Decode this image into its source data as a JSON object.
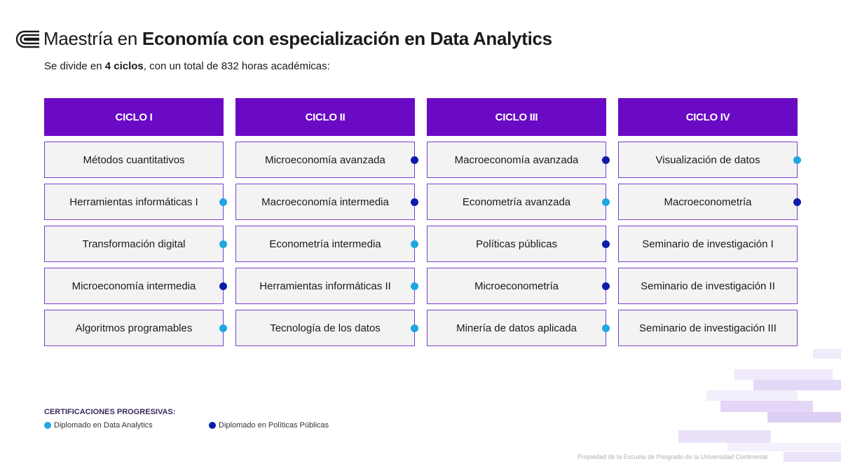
{
  "header": {
    "title_prefix": "Maestría en ",
    "title_bold": "Economía con especialización en Data Analytics",
    "subtitle_pre": "Se divide en ",
    "subtitle_bold": "4 ciclos",
    "subtitle_post": ", con un total de 832 horas académicas:"
  },
  "colors": {
    "header_purple": "#6b0ac4",
    "data_analytics_dot": "#1ea7e1",
    "politicas_publicas_dot": "#0b1cab"
  },
  "cycles": [
    {
      "label": "CICLO I",
      "courses": [
        {
          "name": "Métodos cuantitativos",
          "cert": "none"
        },
        {
          "name": "Herramientas informáticas I",
          "cert": "data-analytics"
        },
        {
          "name": "Transformación digital",
          "cert": "data-analytics"
        },
        {
          "name": "Microeconomía intermedia",
          "cert": "politicas-publicas"
        },
        {
          "name": "Algoritmos programables",
          "cert": "data-analytics"
        }
      ]
    },
    {
      "label": "CICLO II",
      "courses": [
        {
          "name": "Microeconomía avanzada",
          "cert": "politicas-publicas"
        },
        {
          "name": "Macroeconomía intermedia",
          "cert": "politicas-publicas"
        },
        {
          "name": "Econometría intermedia",
          "cert": "data-analytics"
        },
        {
          "name": "Herramientas informáticas II",
          "cert": "data-analytics"
        },
        {
          "name": "Tecnología de los datos",
          "cert": "data-analytics"
        }
      ]
    },
    {
      "label": "CICLO III",
      "courses": [
        {
          "name": "Macroeconomía avanzada",
          "cert": "politicas-publicas"
        },
        {
          "name": "Econometría avanzada",
          "cert": "data-analytics"
        },
        {
          "name": "Políticas públicas",
          "cert": "politicas-publicas"
        },
        {
          "name": "Microeconometría",
          "cert": "politicas-publicas"
        },
        {
          "name": "Minería de datos aplicada",
          "cert": "data-analytics"
        }
      ]
    },
    {
      "label": "CICLO IV",
      "courses": [
        {
          "name": "Visualización de datos",
          "cert": "data-analytics"
        },
        {
          "name": "Macroeconometría",
          "cert": "politicas-publicas"
        },
        {
          "name": "Seminario de investigación I",
          "cert": "none"
        },
        {
          "name": "Seminario de investigación II",
          "cert": "none"
        },
        {
          "name": "Seminario de investigación III",
          "cert": "none"
        }
      ]
    }
  ],
  "certifications": {
    "title": "CERTIFICACIONES PROGRESIVAS:",
    "items": [
      {
        "label": "Diplomado en Data Analytics",
        "type": "data-analytics"
      },
      {
        "label": "Diplomado en Políticas Públicas",
        "type": "politicas-publicas"
      }
    ]
  },
  "footer": {
    "note": "Propiedad de la Escuela de Posgrado de la Universidad Continental"
  }
}
